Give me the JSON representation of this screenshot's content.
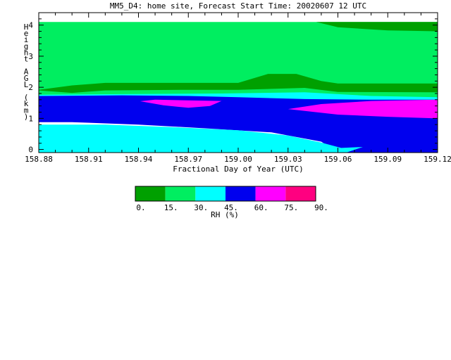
{
  "chart_data": {
    "type": "heatmap",
    "title": "MM5_D4: home site,  Forecast Start Time: 20020607 12 UTC",
    "xlabel": "Fractional Day of Year (UTC)",
    "ylabel": "Height AGL (km)",
    "xlim": [
      158.88,
      159.12
    ],
    "ylim": [
      -0.1,
      4.4
    ],
    "x_ticks": [
      "158.88",
      "158.91",
      "158.94",
      "158.97",
      "159.00",
      "159.03",
      "159.06",
      "159.09",
      "159.12"
    ],
    "y_ticks": [
      "0",
      "1",
      "2",
      "3",
      "4"
    ],
    "colorbar": {
      "label": "RH (%)",
      "levels": [
        "0.",
        "15.",
        "30.",
        "45.",
        "60.",
        "75.",
        "90."
      ],
      "colors": [
        "#00a000",
        "#00ee60",
        "#00ffff",
        "#0000ee",
        "#ff00ff",
        "#ff0080"
      ]
    },
    "regions": [
      {
        "name": "15-30",
        "color_index": 1,
        "points": [
          [
            158.88,
            4.1
          ],
          [
            159.12,
            4.1
          ],
          [
            159.12,
            1.6
          ],
          [
            158.88,
            1.6
          ]
        ]
      },
      {
        "name": "0-15 top",
        "color_index": 0,
        "points": [
          [
            159.047,
            4.1
          ],
          [
            159.12,
            4.1
          ],
          [
            159.12,
            3.8
          ],
          [
            159.09,
            3.83
          ],
          [
            159.06,
            3.93
          ]
        ]
      },
      {
        "name": "0-15 band",
        "color_index": 0,
        "points": [
          [
            158.88,
            1.92
          ],
          [
            158.9,
            2.06
          ],
          [
            158.92,
            2.14
          ],
          [
            158.97,
            2.14
          ],
          [
            159.0,
            2.14
          ],
          [
            159.018,
            2.43
          ],
          [
            159.035,
            2.43
          ],
          [
            159.05,
            2.2
          ],
          [
            159.06,
            2.12
          ],
          [
            159.12,
            2.12
          ],
          [
            159.12,
            1.84
          ],
          [
            159.06,
            1.85
          ],
          [
            159.04,
            1.98
          ],
          [
            159.0,
            1.92
          ],
          [
            158.97,
            1.92
          ],
          [
            158.92,
            1.9
          ],
          [
            158.9,
            1.82
          ],
          [
            158.88,
            1.9
          ]
        ]
      },
      {
        "name": "30-45 upper",
        "color_index": 2,
        "points": [
          [
            158.88,
            1.76
          ],
          [
            158.93,
            1.78
          ],
          [
            158.99,
            1.8
          ],
          [
            159.04,
            1.84
          ],
          [
            159.08,
            1.72
          ],
          [
            159.12,
            1.68
          ],
          [
            159.12,
            1.6
          ],
          [
            158.88,
            1.6
          ]
        ]
      },
      {
        "name": "45-60",
        "color_index": 3,
        "points": [
          [
            158.88,
            1.72
          ],
          [
            158.93,
            1.74
          ],
          [
            158.97,
            1.72
          ],
          [
            159.0,
            1.68
          ],
          [
            159.04,
            1.62
          ],
          [
            159.08,
            1.6
          ],
          [
            159.12,
            1.6
          ],
          [
            159.12,
            -0.1
          ],
          [
            159.06,
            -0.1
          ],
          [
            159.05,
            0.25
          ],
          [
            159.02,
            0.55
          ],
          [
            158.98,
            0.68
          ],
          [
            158.94,
            0.8
          ],
          [
            158.9,
            0.88
          ],
          [
            158.88,
            0.88
          ]
        ]
      },
      {
        "name": "60-75 left",
        "color_index": 4,
        "points": [
          [
            158.941,
            1.55
          ],
          [
            158.95,
            1.6
          ],
          [
            158.99,
            1.56
          ],
          [
            158.983,
            1.4
          ],
          [
            158.97,
            1.34
          ],
          [
            158.955,
            1.42
          ]
        ]
      },
      {
        "name": "60-75 right",
        "color_index": 4,
        "points": [
          [
            159.03,
            1.3
          ],
          [
            159.05,
            1.46
          ],
          [
            159.08,
            1.56
          ],
          [
            159.12,
            1.6
          ],
          [
            159.12,
            1.0
          ],
          [
            159.09,
            1.05
          ],
          [
            159.06,
            1.12
          ]
        ]
      },
      {
        "name": "30-45 lower",
        "color_index": 2,
        "points": [
          [
            158.88,
            0.8
          ],
          [
            158.92,
            0.8
          ],
          [
            158.96,
            0.72
          ],
          [
            159.0,
            0.62
          ],
          [
            159.03,
            0.45
          ],
          [
            159.05,
            0.22
          ],
          [
            159.062,
            0.05
          ],
          [
            159.075,
            0.08
          ],
          [
            159.065,
            -0.1
          ],
          [
            158.88,
            -0.1
          ]
        ]
      }
    ]
  }
}
